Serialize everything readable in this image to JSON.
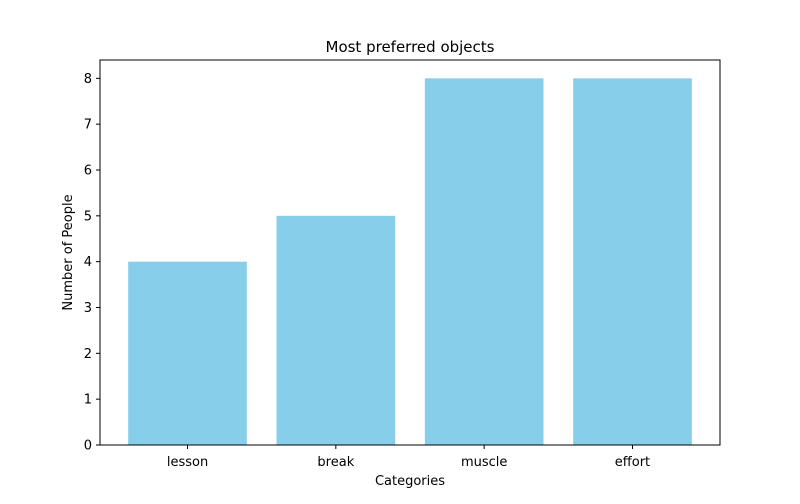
{
  "chart_data": {
    "type": "bar",
    "title": "Most preferred objects",
    "xlabel": "Categories",
    "ylabel": "Number of People",
    "categories": [
      "lesson",
      "break",
      "muscle",
      "effort"
    ],
    "values": [
      4,
      5,
      8,
      8
    ],
    "ylim": [
      0,
      8.4
    ],
    "yticks": [
      0,
      1,
      2,
      3,
      4,
      5,
      6,
      7,
      8
    ],
    "bar_color": "#87ceeb",
    "grid": false,
    "legend": "none"
  }
}
